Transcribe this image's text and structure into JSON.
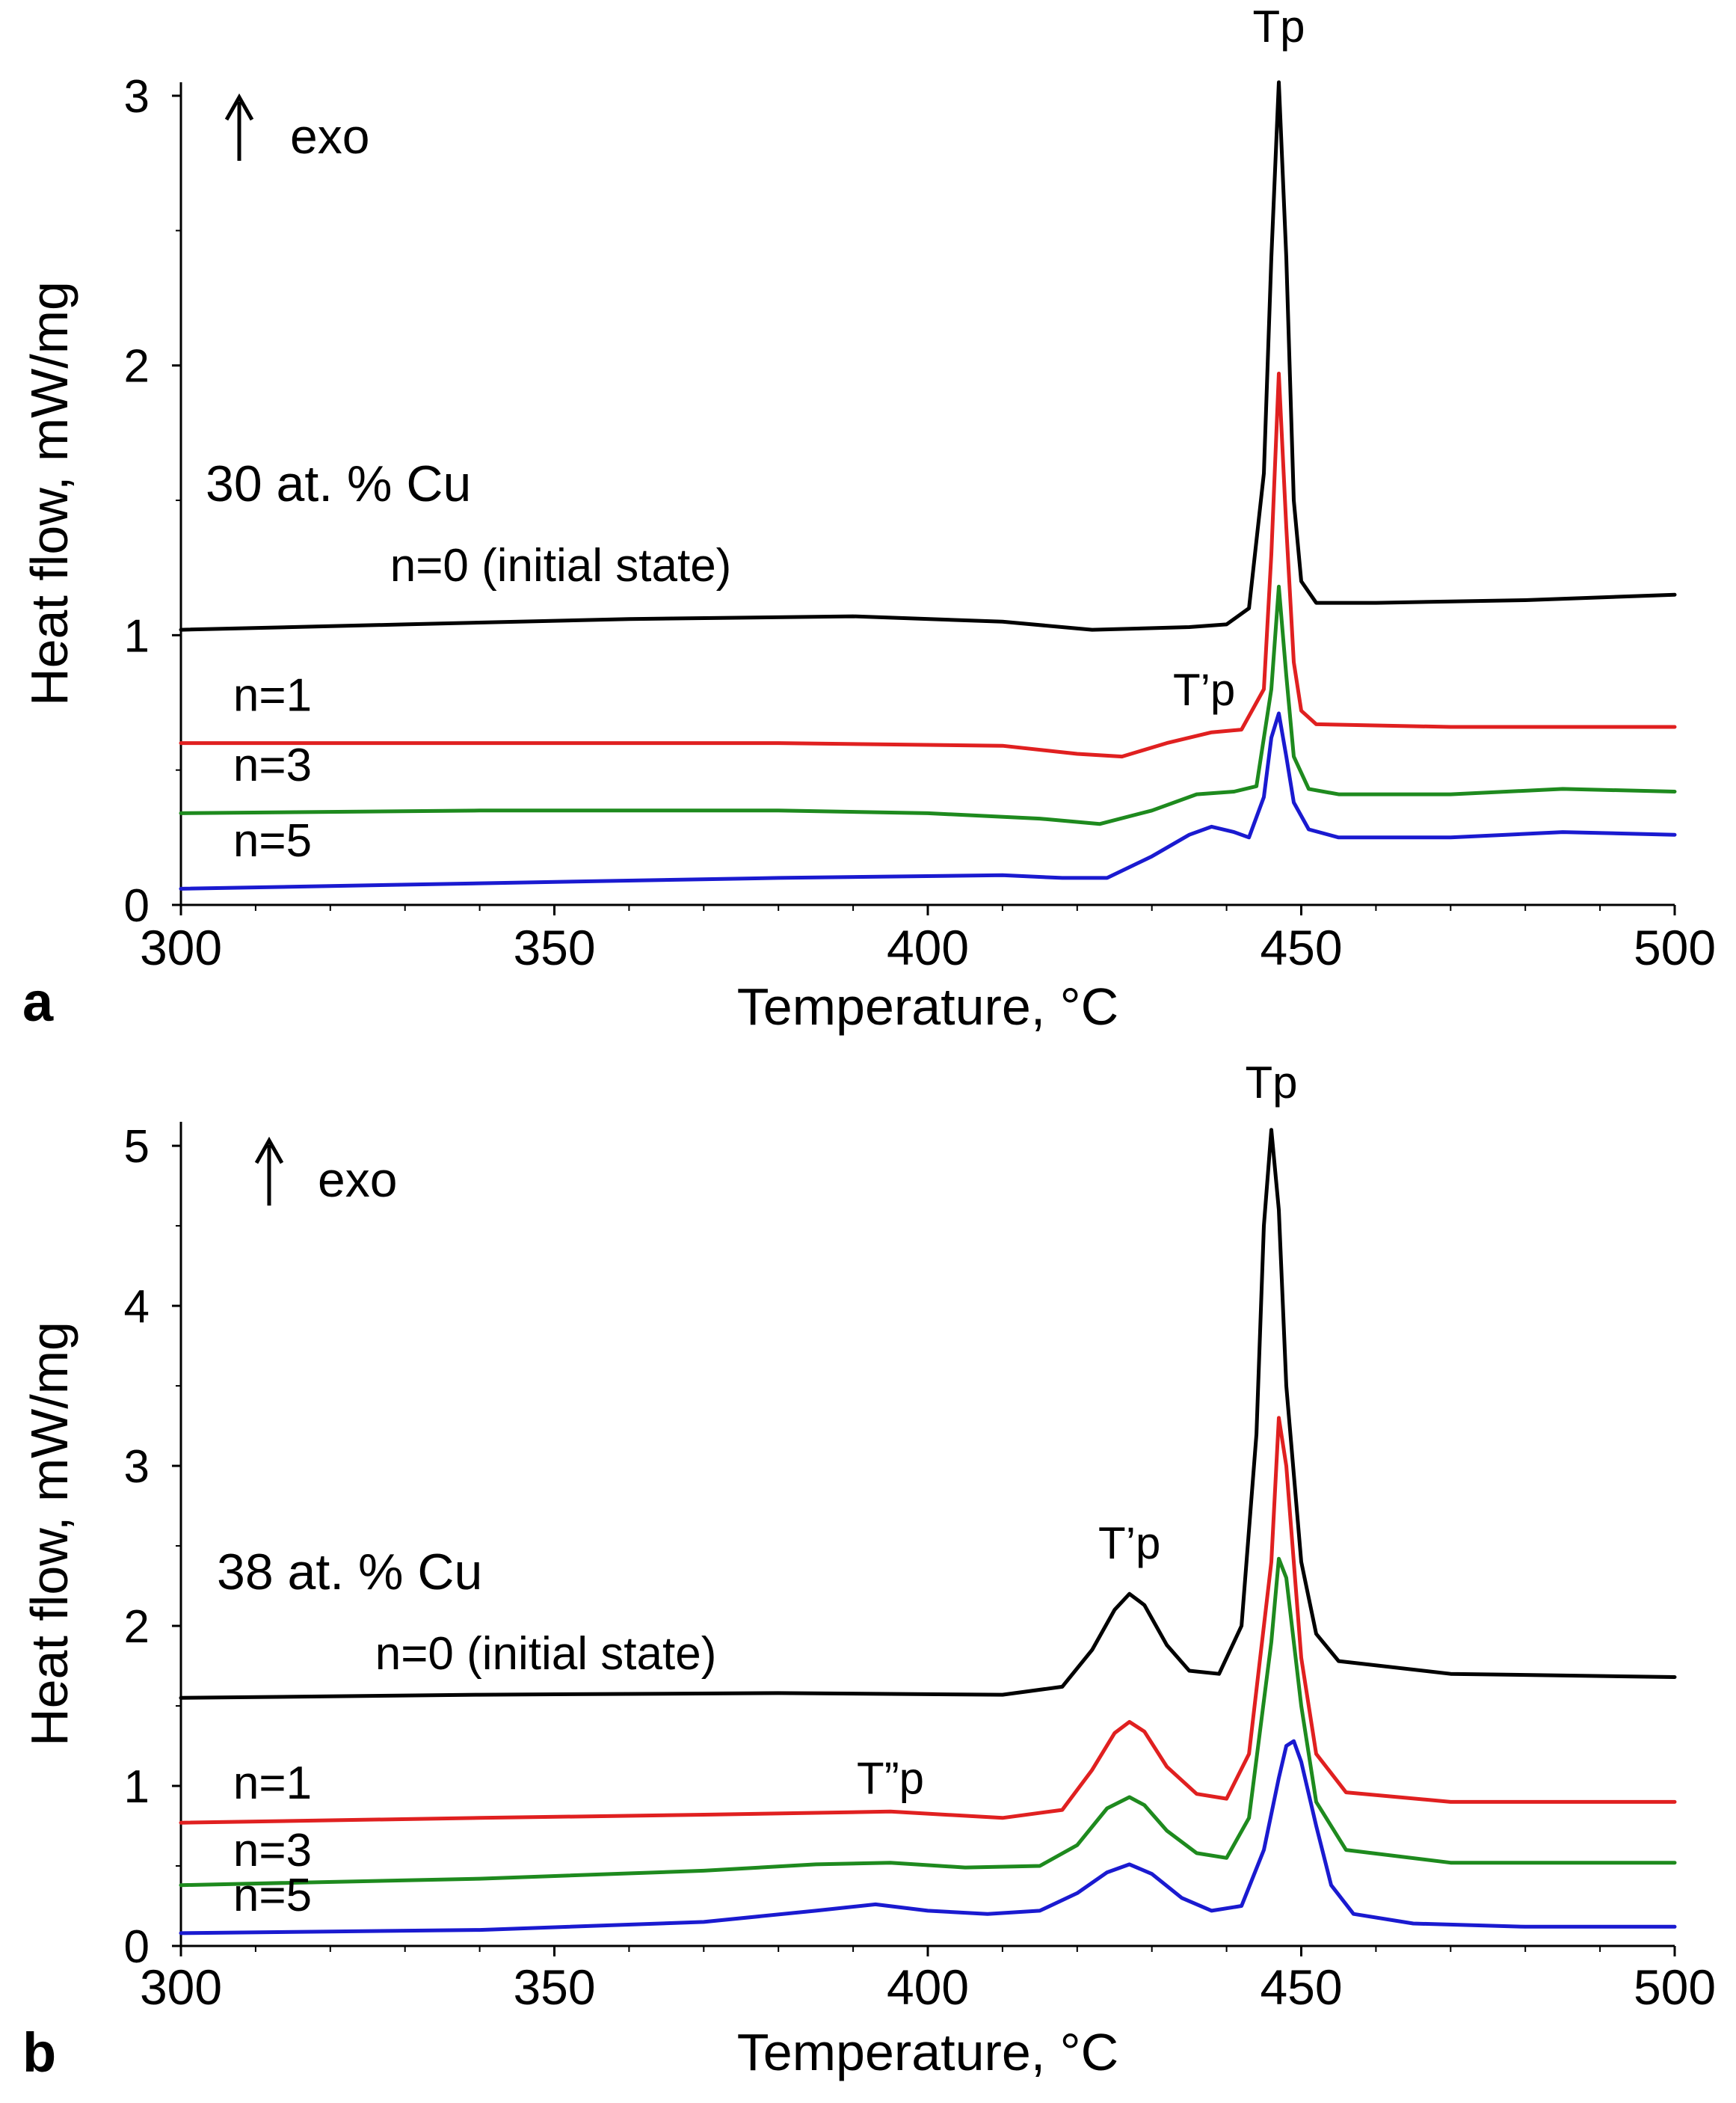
{
  "chart_data": [
    {
      "panel_label": "a",
      "type": "line",
      "xlabel": "Temperature, °C",
      "ylabel": "Heat flow, mW/mg",
      "xlim": [
        300,
        500
      ],
      "ylim": [
        0,
        3.05
      ],
      "x_ticks": [
        300,
        350,
        400,
        450,
        500
      ],
      "y_ticks": [
        0,
        1,
        2,
        3
      ],
      "exo_label": "exo",
      "composition_label": "30 at. % Cu",
      "peak_labels": [
        {
          "text": "Tp",
          "x": 447,
          "y": 3.2
        },
        {
          "text": "T’p",
          "x": 437,
          "y": 0.74
        }
      ],
      "series": [
        {
          "name": "n=0 (initial state)",
          "color": "#000000",
          "label_pos": {
            "x": 328,
            "y": 1.2
          },
          "points": [
            [
              300,
              1.02
            ],
            [
              330,
              1.04
            ],
            [
              360,
              1.06
            ],
            [
              390,
              1.07
            ],
            [
              410,
              1.05
            ],
            [
              422,
              1.02
            ],
            [
              435,
              1.03
            ],
            [
              440,
              1.04
            ],
            [
              443,
              1.1
            ],
            [
              445,
              1.6
            ],
            [
              446,
              2.4
            ],
            [
              447,
              3.05
            ],
            [
              448,
              2.4
            ],
            [
              449,
              1.5
            ],
            [
              450,
              1.2
            ],
            [
              452,
              1.12
            ],
            [
              460,
              1.12
            ],
            [
              480,
              1.13
            ],
            [
              500,
              1.15
            ]
          ]
        },
        {
          "name": "n=1",
          "color": "#e02020",
          "label_pos": {
            "x": 307,
            "y": 0.72
          },
          "points": [
            [
              300,
              0.6
            ],
            [
              340,
              0.6
            ],
            [
              380,
              0.6
            ],
            [
              410,
              0.59
            ],
            [
              420,
              0.56
            ],
            [
              426,
              0.55
            ],
            [
              432,
              0.6
            ],
            [
              438,
              0.64
            ],
            [
              442,
              0.65
            ],
            [
              445,
              0.8
            ],
            [
              446,
              1.3
            ],
            [
              447,
              1.97
            ],
            [
              448,
              1.4
            ],
            [
              449,
              0.9
            ],
            [
              450,
              0.72
            ],
            [
              452,
              0.67
            ],
            [
              470,
              0.66
            ],
            [
              500,
              0.66
            ]
          ]
        },
        {
          "name": "n=3",
          "color": "#1e8a1e",
          "label_pos": {
            "x": 307,
            "y": 0.46
          },
          "points": [
            [
              300,
              0.34
            ],
            [
              340,
              0.35
            ],
            [
              380,
              0.35
            ],
            [
              400,
              0.34
            ],
            [
              415,
              0.32
            ],
            [
              423,
              0.3
            ],
            [
              430,
              0.35
            ],
            [
              436,
              0.41
            ],
            [
              441,
              0.42
            ],
            [
              444,
              0.44
            ],
            [
              446,
              0.8
            ],
            [
              447,
              1.18
            ],
            [
              448,
              0.85
            ],
            [
              449,
              0.55
            ],
            [
              451,
              0.43
            ],
            [
              455,
              0.41
            ],
            [
              470,
              0.41
            ],
            [
              485,
              0.43
            ],
            [
              500,
              0.42
            ]
          ]
        },
        {
          "name": "n=5",
          "color": "#1a1ad0",
          "label_pos": {
            "x": 307,
            "y": 0.18
          },
          "points": [
            [
              300,
              0.06
            ],
            [
              340,
              0.08
            ],
            [
              380,
              0.1
            ],
            [
              410,
              0.11
            ],
            [
              418,
              0.1
            ],
            [
              424,
              0.1
            ],
            [
              430,
              0.18
            ],
            [
              435,
              0.26
            ],
            [
              438,
              0.29
            ],
            [
              441,
              0.27
            ],
            [
              443,
              0.25
            ],
            [
              445,
              0.4
            ],
            [
              446,
              0.62
            ],
            [
              447,
              0.71
            ],
            [
              448,
              0.55
            ],
            [
              449,
              0.38
            ],
            [
              451,
              0.28
            ],
            [
              455,
              0.25
            ],
            [
              470,
              0.25
            ],
            [
              485,
              0.27
            ],
            [
              500,
              0.26
            ]
          ]
        }
      ]
    },
    {
      "panel_label": "b",
      "type": "line",
      "xlabel": "Temperature, °C",
      "ylabel": "Heat flow, mW/mg",
      "xlim": [
        300,
        500
      ],
      "ylim": [
        0,
        5.15
      ],
      "x_ticks": [
        300,
        350,
        400,
        450,
        500
      ],
      "y_ticks": [
        0,
        1,
        2,
        3,
        4,
        5
      ],
      "exo_label": "exo",
      "composition_label": "38 at. % Cu",
      "peak_labels": [
        {
          "text": "Tp",
          "x": 446,
          "y": 5.3
        },
        {
          "text": "T’p",
          "x": 427,
          "y": 2.42
        },
        {
          "text": "T”p",
          "x": 395,
          "y": 0.95
        }
      ],
      "series": [
        {
          "name": "n=0 (initial state)",
          "color": "#000000",
          "label_pos": {
            "x": 326,
            "y": 1.73
          },
          "points": [
            [
              300,
              1.55
            ],
            [
              340,
              1.57
            ],
            [
              380,
              1.58
            ],
            [
              410,
              1.57
            ],
            [
              418,
              1.62
            ],
            [
              422,
              1.85
            ],
            [
              425,
              2.1
            ],
            [
              427,
              2.2
            ],
            [
              429,
              2.13
            ],
            [
              432,
              1.88
            ],
            [
              435,
              1.72
            ],
            [
              439,
              1.7
            ],
            [
              442,
              2.0
            ],
            [
              444,
              3.2
            ],
            [
              445,
              4.5
            ],
            [
              446,
              5.1
            ],
            [
              447,
              4.6
            ],
            [
              448,
              3.5
            ],
            [
              450,
              2.4
            ],
            [
              452,
              1.95
            ],
            [
              455,
              1.78
            ],
            [
              470,
              1.7
            ],
            [
              500,
              1.68
            ]
          ]
        },
        {
          "name": "n=1",
          "color": "#e02020",
          "label_pos": {
            "x": 307,
            "y": 0.92
          },
          "points": [
            [
              300,
              0.77
            ],
            [
              340,
              0.8
            ],
            [
              370,
              0.82
            ],
            [
              395,
              0.84
            ],
            [
              410,
              0.8
            ],
            [
              418,
              0.85
            ],
            [
              422,
              1.1
            ],
            [
              425,
              1.33
            ],
            [
              427,
              1.4
            ],
            [
              429,
              1.34
            ],
            [
              432,
              1.12
            ],
            [
              436,
              0.95
            ],
            [
              440,
              0.92
            ],
            [
              443,
              1.2
            ],
            [
              446,
              2.4
            ],
            [
              447,
              3.3
            ],
            [
              448,
              3.0
            ],
            [
              450,
              1.8
            ],
            [
              452,
              1.2
            ],
            [
              456,
              0.96
            ],
            [
              470,
              0.9
            ],
            [
              500,
              0.9
            ]
          ]
        },
        {
          "name": "n=3",
          "color": "#1e8a1e",
          "label_pos": {
            "x": 307,
            "y": 0.5
          },
          "points": [
            [
              300,
              0.38
            ],
            [
              340,
              0.42
            ],
            [
              370,
              0.47
            ],
            [
              385,
              0.51
            ],
            [
              395,
              0.52
            ],
            [
              405,
              0.49
            ],
            [
              415,
              0.5
            ],
            [
              420,
              0.63
            ],
            [
              424,
              0.86
            ],
            [
              427,
              0.93
            ],
            [
              429,
              0.88
            ],
            [
              432,
              0.72
            ],
            [
              436,
              0.58
            ],
            [
              440,
              0.55
            ],
            [
              443,
              0.8
            ],
            [
              446,
              1.9
            ],
            [
              447,
              2.42
            ],
            [
              448,
              2.3
            ],
            [
              450,
              1.5
            ],
            [
              452,
              0.9
            ],
            [
              456,
              0.6
            ],
            [
              470,
              0.52
            ],
            [
              500,
              0.52
            ]
          ]
        },
        {
          "name": "n=5",
          "color": "#1a1ad0",
          "label_pos": {
            "x": 307,
            "y": 0.22
          },
          "points": [
            [
              300,
              0.08
            ],
            [
              340,
              0.1
            ],
            [
              370,
              0.15
            ],
            [
              385,
              0.22
            ],
            [
              393,
              0.26
            ],
            [
              400,
              0.22
            ],
            [
              408,
              0.2
            ],
            [
              415,
              0.22
            ],
            [
              420,
              0.33
            ],
            [
              424,
              0.46
            ],
            [
              427,
              0.51
            ],
            [
              430,
              0.45
            ],
            [
              434,
              0.3
            ],
            [
              438,
              0.22
            ],
            [
              442,
              0.25
            ],
            [
              445,
              0.6
            ],
            [
              447,
              1.05
            ],
            [
              448,
              1.25
            ],
            [
              449,
              1.28
            ],
            [
              450,
              1.15
            ],
            [
              452,
              0.75
            ],
            [
              454,
              0.38
            ],
            [
              457,
              0.2
            ],
            [
              465,
              0.14
            ],
            [
              480,
              0.12
            ],
            [
              500,
              0.12
            ]
          ]
        }
      ]
    }
  ]
}
